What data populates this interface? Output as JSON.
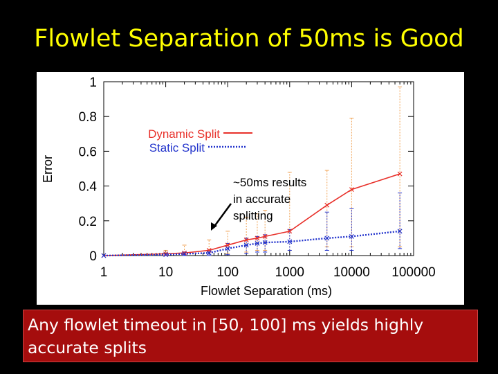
{
  "slide": {
    "title": "Flowlet Separation of 50ms is Good",
    "caption": "Any flowlet timeout in [50, 100] ms yields highly accurate splits"
  },
  "colors": {
    "title": "#ffff00",
    "caption_bg": "#a50d0d",
    "dynamic": "#e8302a",
    "static": "#2233cc",
    "errorbar": "#f0a050"
  },
  "chart_data": {
    "type": "line",
    "xlabel": "Flowlet Separation (ms)",
    "ylabel": "Error",
    "xscale": "log",
    "xlim": [
      1,
      100000
    ],
    "ylim": [
      0,
      1
    ],
    "xticks": [
      "1",
      "10",
      "100",
      "1000",
      "10000",
      "100000"
    ],
    "yticks": [
      "0",
      "0.2",
      "0.4",
      "0.6",
      "0.8",
      "1"
    ],
    "grid": false,
    "legend_position": "upper-left",
    "series": [
      {
        "name": "Dynamic Split",
        "color": "#e8302a",
        "style": "solid",
        "x": [
          1,
          10,
          20,
          50,
          100,
          200,
          300,
          400,
          1000,
          4000,
          10000,
          60000
        ],
        "y": [
          0.0,
          0.01,
          0.015,
          0.03,
          0.06,
          0.09,
          0.1,
          0.11,
          0.14,
          0.29,
          0.38,
          0.47
        ],
        "err_low": [
          0.0,
          0.0,
          0.0,
          0.0,
          0.01,
          0.02,
          0.03,
          0.03,
          0.03,
          0.05,
          0.05,
          0.05
        ],
        "err_high": [
          0.0,
          0.03,
          0.06,
          0.09,
          0.14,
          0.22,
          0.24,
          0.26,
          0.48,
          0.49,
          0.79,
          0.97
        ]
      },
      {
        "name": "Static Split",
        "color": "#2233cc",
        "style": "dotted",
        "x": [
          1,
          10,
          20,
          50,
          100,
          200,
          300,
          400,
          1000,
          4000,
          10000,
          60000
        ],
        "y": [
          0.0,
          0.005,
          0.01,
          0.015,
          0.04,
          0.06,
          0.07,
          0.075,
          0.08,
          0.1,
          0.11,
          0.14
        ],
        "err_low": [
          0.0,
          0.0,
          0.0,
          0.0,
          0.005,
          0.01,
          0.02,
          0.02,
          0.03,
          0.03,
          0.03,
          0.04
        ],
        "err_high": [
          0.0,
          0.01,
          0.02,
          0.03,
          0.07,
          0.1,
          0.11,
          0.12,
          0.15,
          0.25,
          0.27,
          0.36
        ]
      }
    ],
    "annotation": {
      "lines": [
        "~50ms results",
        "in accurate",
        "splitting"
      ]
    }
  }
}
